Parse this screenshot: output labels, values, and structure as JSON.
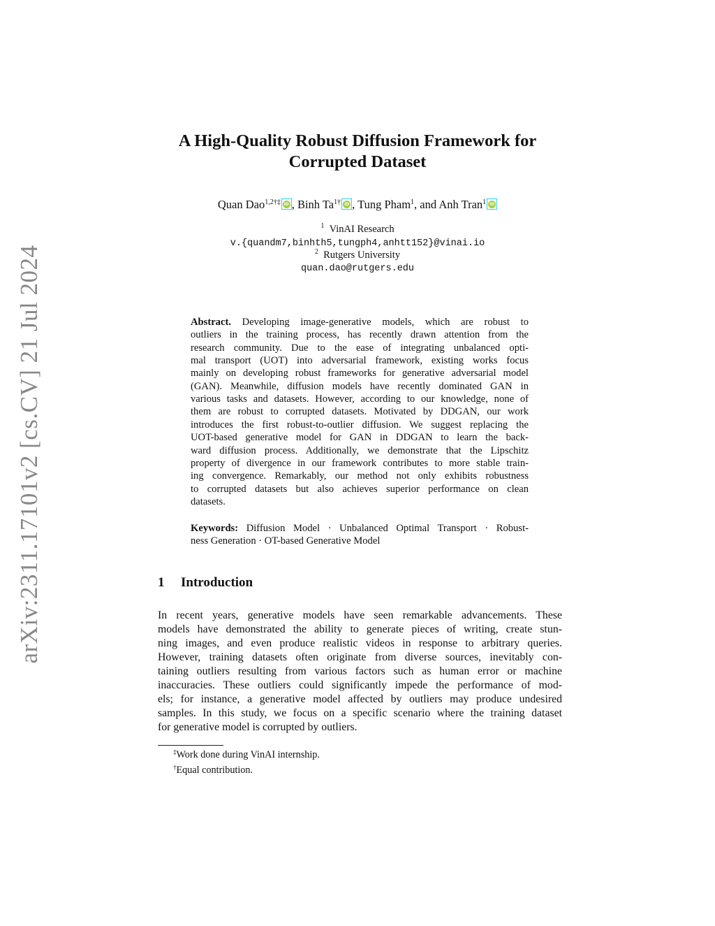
{
  "arxiv_stamp": "arXiv:2311.17101v2  [cs.CV]  21 Jul 2024",
  "title_lines": [
    "A High-Quality Robust Diffusion Framework for",
    "Corrupted Dataset"
  ],
  "authors": [
    {
      "name": "Quan Dao",
      "marks": "1,2†‡"
    },
    {
      "name": "Binh Ta",
      "marks": "1†"
    },
    {
      "name": "Tung Pham",
      "marks": "1"
    },
    {
      "name": "Anh Tran",
      "marks": "1"
    }
  ],
  "author_separators": [
    ", ",
    ", ",
    ", and "
  ],
  "affiliations": [
    {
      "mark": "1",
      "name": "VinAI Research",
      "email": "v.{quandm7,binhth5,tungph4,anhtt152}@vinai.io"
    },
    {
      "mark": "2",
      "name": "Rutgers University",
      "email": "quan.dao@rutgers.edu"
    }
  ],
  "abstract": {
    "label": "Abstract.",
    "lines": [
      " Developing image-generative models, which are robust to",
      "outliers in the training process, has recently drawn attention from the",
      "research community. Due to the ease of integrating unbalanced opti-",
      "mal transport (UOT) into adversarial framework, existing works focus",
      "mainly on developing robust frameworks for generative adversarial model",
      "(GAN). Meanwhile, diffusion models have recently dominated GAN in",
      "various tasks and datasets. However, according to our knowledge, none of",
      "them are robust to corrupted datasets. Motivated by DDGAN, our work",
      "introduces the first robust-to-outlier diffusion. We suggest replacing the",
      "UOT-based generative model for GAN in DDGAN to learn the back-",
      "ward diffusion process. Additionally, we demonstrate that the Lipschitz",
      "property of divergence in our framework contributes to more stable train-",
      "ing convergence. Remarkably, our method not only exhibits robustness",
      "to corrupted datasets but also achieves superior performance on clean",
      "datasets."
    ]
  },
  "keywords": {
    "label": "Keywords:",
    "lines": [
      " Diffusion Model · Unbalanced Optimal Transport · Robust-",
      "ness Generation · OT-based Generative Model"
    ]
  },
  "section": {
    "number": "1",
    "title": "Introduction"
  },
  "intro_lines": [
    "In recent years, generative models have seen remarkable advancements. These",
    "models have demonstrated the ability to generate pieces of writing, create stun-",
    "ning images, and even produce realistic videos in response to arbitrary queries.",
    "However, training datasets often originate from diverse sources, inevitably con-",
    "taining outliers resulting from various factors such as human error or machine",
    "inaccuracies. These outliers could significantly impede the performance of mod-",
    "els; for instance, a generative model affected by outliers may produce undesired",
    "samples. In this study, we focus on a specific scenario where the training dataset",
    "for generative model is corrupted by outliers."
  ],
  "footnotes": [
    {
      "mark": "‡",
      "text": "Work done during VinAI internship."
    },
    {
      "mark": "†",
      "text": "Equal contribution."
    }
  ],
  "colors": {
    "orcid_green": "#a6ce39",
    "orcid_box": "#2ad4f0",
    "stamp_gray": "#888888"
  }
}
